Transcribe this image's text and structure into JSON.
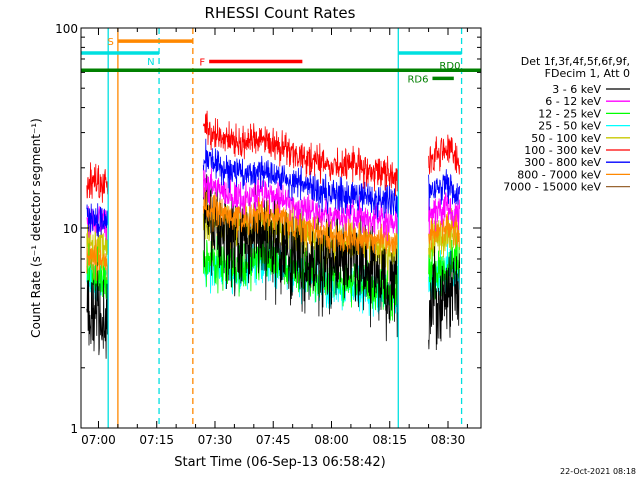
{
  "chart_data": {
    "type": "line",
    "title": "RHESSI Count Rates",
    "xlabel": "Start Time (06-Sep-13 06:58:42)",
    "ylabel": "Count Rate (s⁻¹ detector segment⁻¹)",
    "yscale": "log",
    "ylim": [
      1,
      100
    ],
    "xlim_min": [
      -4.5,
      98.5
    ],
    "y_ticks": [
      {
        "value": 100,
        "label": "100"
      },
      {
        "value": 10,
        "label": "10"
      },
      {
        "value": 1,
        "label": "1"
      }
    ],
    "x_ticks": [
      {
        "value": 0,
        "label": "07:00"
      },
      {
        "value": 15,
        "label": "07:15"
      },
      {
        "value": 30,
        "label": "07:30"
      },
      {
        "value": 45,
        "label": "07:45"
      },
      {
        "value": 60,
        "label": "08:00"
      },
      {
        "value": 75,
        "label": "08:15"
      },
      {
        "value": 90,
        "label": "08:30"
      }
    ],
    "segments": [
      [
        -3,
        2.5
      ],
      [
        27,
        77
      ],
      [
        85,
        93
      ]
    ],
    "noise_jitter": 0.15,
    "series": [
      {
        "name": "3 - 6 keV",
        "color": "#000000",
        "noise": 0.1,
        "points": [
          [
            -3,
            3.9
          ],
          [
            0,
            3.8
          ],
          [
            2.5,
            3.4
          ],
          [
            27,
            12
          ],
          [
            32,
            9
          ],
          [
            37,
            8.2
          ],
          [
            42,
            9.2
          ],
          [
            46,
            8.4
          ],
          [
            52,
            7
          ],
          [
            60,
            6.5
          ],
          [
            66,
            7
          ],
          [
            72,
            5.6
          ],
          [
            77,
            4.3
          ],
          [
            85,
            3.8
          ],
          [
            88,
            4.3
          ],
          [
            92,
            5.2
          ],
          [
            93,
            5.5
          ]
        ]
      },
      {
        "name": "6 - 12 keV",
        "color": "#ff00ff",
        "noise": 0.035,
        "points": [
          [
            -3,
            11
          ],
          [
            0,
            10.8
          ],
          [
            2.5,
            10.3
          ],
          [
            27,
            17
          ],
          [
            32,
            15
          ],
          [
            37,
            14
          ],
          [
            42,
            15.2
          ],
          [
            46,
            14.2
          ],
          [
            52,
            12.8
          ],
          [
            60,
            11.3
          ],
          [
            66,
            11.8
          ],
          [
            72,
            10.8
          ],
          [
            77,
            10.2
          ],
          [
            80,
            11
          ],
          [
            85,
            11.5
          ],
          [
            88,
            12.5
          ],
          [
            91,
            12.2
          ],
          [
            93,
            11.5
          ]
        ]
      },
      {
        "name": "12 - 25 keV",
        "color": "#00ff00",
        "noise": 0.05,
        "points": [
          [
            -3,
            6
          ],
          [
            0,
            5.7
          ],
          [
            2.5,
            5.3
          ],
          [
            27,
            7
          ],
          [
            32,
            6.8
          ],
          [
            37,
            6.3
          ],
          [
            42,
            7.3
          ],
          [
            46,
            7
          ],
          [
            52,
            6.2
          ],
          [
            60,
            5.5
          ],
          [
            66,
            5.5
          ],
          [
            72,
            4.9
          ],
          [
            77,
            4.8
          ],
          [
            80,
            5.2
          ],
          [
            85,
            5.7
          ],
          [
            88,
            6.3
          ],
          [
            91,
            6.6
          ],
          [
            93,
            6.3
          ]
        ]
      },
      {
        "name": "25 - 50 keV",
        "color": "#00ffff",
        "noise": 0.045,
        "points": [
          [
            -3,
            5.7
          ],
          [
            0,
            5.5
          ],
          [
            2.5,
            5.1
          ],
          [
            27,
            6.3
          ],
          [
            32,
            6.1
          ],
          [
            37,
            5.8
          ],
          [
            42,
            6.7
          ],
          [
            46,
            6.5
          ],
          [
            52,
            5.7
          ],
          [
            60,
            5
          ],
          [
            66,
            5.1
          ],
          [
            72,
            4.6
          ],
          [
            77,
            4.5
          ],
          [
            80,
            4.9
          ],
          [
            85,
            5.3
          ],
          [
            88,
            5.9
          ],
          [
            91,
            6.3
          ],
          [
            93,
            5.9
          ]
        ]
      },
      {
        "name": "50 - 100 keV",
        "color": "#c8c800",
        "noise": 0.05,
        "points": [
          [
            -3,
            8.5
          ],
          [
            0,
            8.2
          ],
          [
            2.5,
            7.9
          ],
          [
            27,
            11
          ],
          [
            32,
            10.2
          ],
          [
            37,
            9.7
          ],
          [
            42,
            10.6
          ],
          [
            46,
            10.2
          ],
          [
            52,
            9.1
          ],
          [
            60,
            8.1
          ],
          [
            66,
            8.2
          ],
          [
            72,
            7.6
          ],
          [
            77,
            7.3
          ],
          [
            80,
            7.8
          ],
          [
            85,
            8.2
          ],
          [
            88,
            9
          ],
          [
            91,
            9.3
          ],
          [
            93,
            8.9
          ]
        ]
      },
      {
        "name": "100 - 300 keV",
        "color": "#ff0000",
        "noise": 0.035,
        "points": [
          [
            -3,
            17
          ],
          [
            0,
            16.8
          ],
          [
            2.5,
            16
          ],
          [
            27,
            32
          ],
          [
            32,
            28
          ],
          [
            37,
            26
          ],
          [
            42,
            27.5
          ],
          [
            46,
            26
          ],
          [
            52,
            23
          ],
          [
            60,
            20
          ],
          [
            66,
            21
          ],
          [
            72,
            19
          ],
          [
            77,
            18.2
          ],
          [
            80,
            19.5
          ],
          [
            85,
            21
          ],
          [
            88,
            24
          ],
          [
            90,
            25.5
          ],
          [
            92,
            22
          ],
          [
            93,
            21
          ]
        ]
      },
      {
        "name": "300 - 800 keV",
        "color": "#0000ff",
        "noise": 0.035,
        "points": [
          [
            -3,
            11
          ],
          [
            0,
            10.8
          ],
          [
            2.5,
            10.4
          ],
          [
            27,
            23
          ],
          [
            32,
            20
          ],
          [
            37,
            18.5
          ],
          [
            42,
            19.5
          ],
          [
            46,
            18.2
          ],
          [
            52,
            16.5
          ],
          [
            60,
            14.5
          ],
          [
            66,
            15
          ],
          [
            72,
            13.8
          ],
          [
            77,
            13.2
          ],
          [
            80,
            14
          ],
          [
            85,
            15
          ],
          [
            88,
            16
          ],
          [
            90,
            16.5
          ],
          [
            93,
            14.5
          ]
        ]
      },
      {
        "name": "800 - 7000 keV",
        "color": "#ff8800",
        "noise": 0.035,
        "points": [
          [
            -3,
            7
          ],
          [
            0,
            6.9
          ],
          [
            2.5,
            6.7
          ],
          [
            27,
            13
          ],
          [
            32,
            11.8
          ],
          [
            37,
            11
          ],
          [
            42,
            12
          ],
          [
            46,
            11.5
          ],
          [
            52,
            10.2
          ],
          [
            60,
            9
          ],
          [
            66,
            9.2
          ],
          [
            72,
            8.6
          ],
          [
            77,
            8.2
          ],
          [
            80,
            8.8
          ],
          [
            85,
            9.3
          ],
          [
            88,
            10
          ],
          [
            91,
            10.2
          ],
          [
            93,
            9.8
          ]
        ]
      },
      {
        "name": "7000 - 15000 keV",
        "color": "#996633",
        "noise": 0.03,
        "points": [
          [
            27,
            8
          ],
          [
            93,
            8
          ]
        ]
      }
    ],
    "vlines": [
      {
        "name": "saa-start",
        "x": 2.5,
        "color": "#00e0e0",
        "dash": false
      },
      {
        "name": "saa-end",
        "x": 5,
        "color": "#ff8800",
        "dash": false
      },
      {
        "name": "night-end",
        "x": 15.6,
        "color": "#00e0e0",
        "dash": true
      },
      {
        "name": "saa-dash",
        "x": 24.3,
        "color": "#ff8800",
        "dash": true
      },
      {
        "name": "night-start",
        "x": 77.2,
        "color": "#00e0e0",
        "dash": false
      },
      {
        "name": "day-end",
        "x": 93.5,
        "color": "#00e0e0",
        "dash": true
      }
    ],
    "flag_bars": [
      {
        "name": "S",
        "label": "S",
        "color": "#ff8800",
        "x0": 5,
        "x1": 24.3,
        "y": 86,
        "label_side": "left"
      },
      {
        "name": "N",
        "label": "N",
        "color": "#00e0e0",
        "x0": -4.5,
        "x1": 15.6,
        "y": 75,
        "label_side": "below"
      },
      {
        "name": "N2",
        "label": "",
        "color": "#00e0e0",
        "x0": 77.2,
        "x1": 93.5,
        "y": 75,
        "label_side": "none"
      },
      {
        "name": "F",
        "label": "F",
        "color": "#ff0000",
        "x0": 28.5,
        "x1": 52.5,
        "y": 68,
        "label_side": "left"
      },
      {
        "name": "RD0",
        "label": "RD0",
        "color": "#008000",
        "x0": -4.5,
        "x1": 98.5,
        "y": 61.5,
        "label_side": "rightabove"
      },
      {
        "name": "RD6",
        "label": "RD6",
        "color": "#008000",
        "x0": 86,
        "x1": 91.5,
        "y": 56,
        "label_side": "left"
      }
    ],
    "legend": {
      "header": [
        "Det 1f,3f,4f,5f,6f,9f,",
        "FDecim 1, Att 0"
      ],
      "position": "right"
    },
    "footer": "22-Oct-2021 08:18"
  }
}
